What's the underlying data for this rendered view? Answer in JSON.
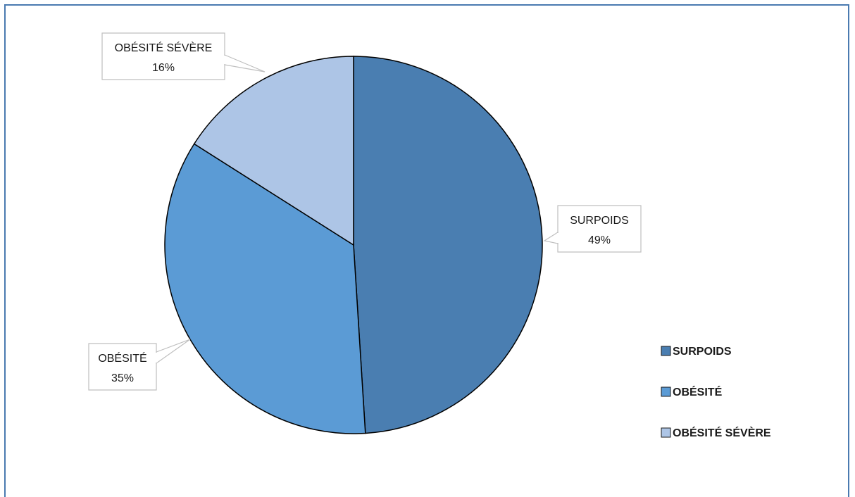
{
  "chart_data": {
    "type": "pie",
    "title": "",
    "categories": [
      "SURPOIDS",
      "OBÉSITÉ",
      "OBÉSITÉ SÉVÈRE"
    ],
    "values": [
      49,
      35,
      16
    ],
    "labels": [
      "49%",
      "35%",
      "16%"
    ],
    "colors": [
      "#4a7eb1",
      "#5b9bd5",
      "#adc5e6"
    ],
    "legend_position": "right"
  }
}
